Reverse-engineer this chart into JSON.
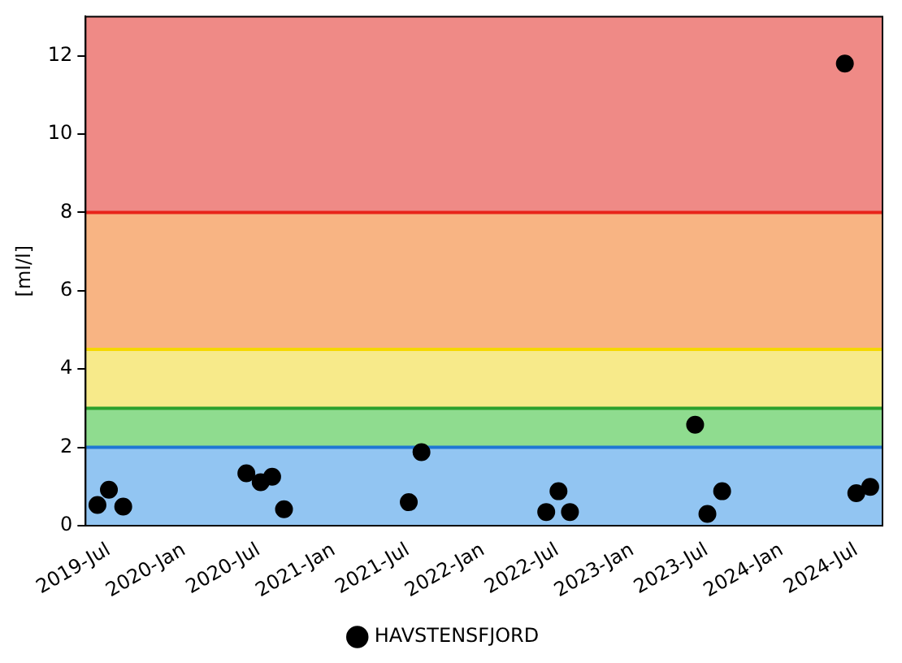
{
  "chart_data": {
    "type": "scatter",
    "ylabel": "[ml/l]",
    "x": [
      "2019-06-03",
      "2019-07-01",
      "2019-08-05",
      "2020-06-01",
      "2020-07-06",
      "2020-08-03",
      "2020-09-01",
      "2021-07-03",
      "2021-08-03",
      "2022-06-04",
      "2022-07-04",
      "2022-08-01",
      "2023-06-03",
      "2023-07-03",
      "2023-08-08",
      "2024-06-03",
      "2024-07-01",
      "2024-08-04"
    ],
    "series": [
      {
        "name": "HAVSTENSFJORD",
        "color": "#000000",
        "values": [
          0.53,
          0.92,
          0.49,
          1.34,
          1.11,
          1.25,
          0.42,
          0.6,
          1.88,
          0.35,
          0.88,
          0.35,
          2.58,
          0.3,
          0.88,
          11.8,
          0.83,
          0.99
        ]
      }
    ],
    "xlim": [
      "2019-05-05",
      "2024-09-03"
    ],
    "xticks": [
      {
        "value": "2019-07-01",
        "label": "2019-Jul"
      },
      {
        "value": "2020-01-01",
        "label": "2020-Jan"
      },
      {
        "value": "2020-07-01",
        "label": "2020-Jul"
      },
      {
        "value": "2021-01-01",
        "label": "2021-Jan"
      },
      {
        "value": "2021-07-01",
        "label": "2021-Jul"
      },
      {
        "value": "2022-01-01",
        "label": "2022-Jan"
      },
      {
        "value": "2022-07-01",
        "label": "2022-Jul"
      },
      {
        "value": "2023-01-01",
        "label": "2023-Jan"
      },
      {
        "value": "2023-07-01",
        "label": "2023-Jul"
      },
      {
        "value": "2024-01-01",
        "label": "2024-Jan"
      },
      {
        "value": "2024-07-01",
        "label": "2024-Jul"
      }
    ],
    "ylim": [
      0,
      13
    ],
    "yticks": [
      0,
      2,
      4,
      6,
      8,
      10,
      12
    ],
    "bands": [
      {
        "axis": "y",
        "from": 0,
        "to": 2,
        "color": "#92c5f2"
      },
      {
        "axis": "y",
        "from": 2,
        "to": 3,
        "color": "#8fdc8f"
      },
      {
        "axis": "y",
        "from": 3,
        "to": 4.5,
        "color": "#f7ea8a"
      },
      {
        "axis": "y",
        "from": 4.5,
        "to": 8,
        "color": "#f8b483"
      },
      {
        "axis": "y",
        "from": 8,
        "to": 13,
        "color": "#ef8a86"
      }
    ],
    "ref_lines": [
      {
        "axis": "y",
        "value": 2,
        "color": "#1f77d4"
      },
      {
        "axis": "y",
        "value": 3,
        "color": "#2ca02c"
      },
      {
        "axis": "y",
        "value": 4.5,
        "color": "#f5d800"
      },
      {
        "axis": "y",
        "value": 8,
        "color": "#e8231a"
      }
    ],
    "grid": false,
    "legend": "bottom",
    "marker": "circle"
  }
}
